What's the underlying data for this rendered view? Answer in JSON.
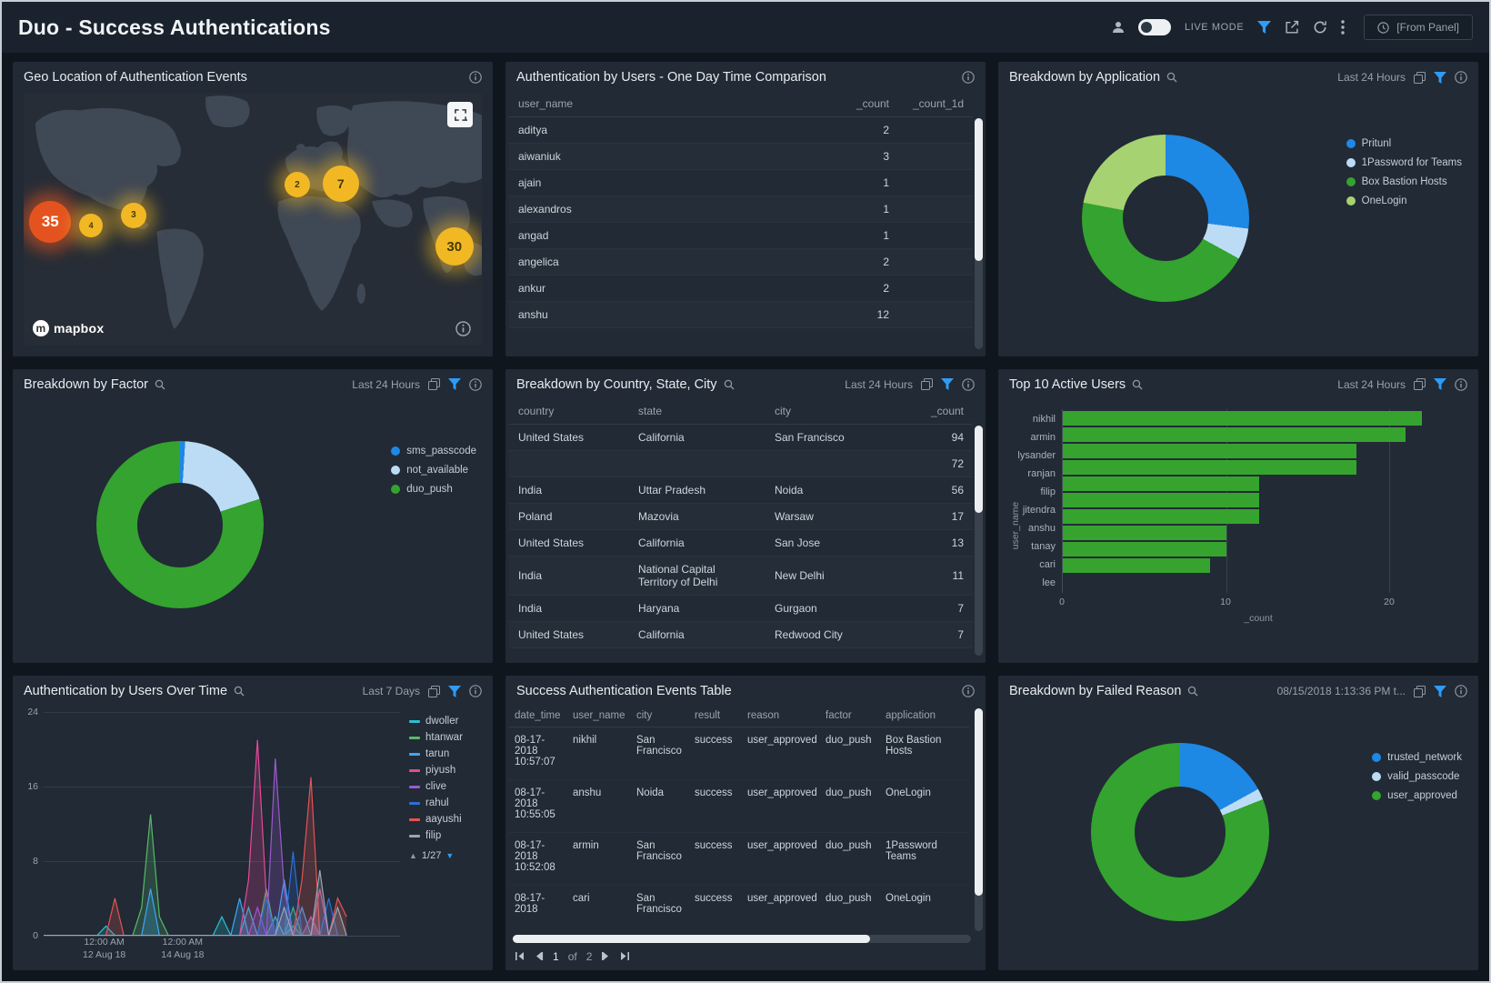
{
  "header": {
    "title": "Duo - Success Authentications",
    "live_mode_label": "LIVE MODE",
    "from_panel_label": "[From Panel]"
  },
  "panels": {
    "geo": {
      "title": "Geo Location of Authentication Events",
      "mapbox_label": "mapbox",
      "markers": [
        {
          "value": "35",
          "x": 5.8,
          "y": 51,
          "size": 46,
          "color": "#e4531f",
          "text_color": "#ffffff",
          "glow": "rgba(228,83,31,0.55)"
        },
        {
          "value": "4",
          "x": 14.7,
          "y": 52.5,
          "size": 26,
          "color": "#f2b824",
          "text_color": "#473a05",
          "glow": "rgba(242,184,36,0.45)"
        },
        {
          "value": "3",
          "x": 24,
          "y": 48.5,
          "size": 28,
          "color": "#f2b824",
          "text_color": "#473a05",
          "glow": "rgba(242,184,36,0.45)"
        },
        {
          "value": "2",
          "x": 59.7,
          "y": 36.5,
          "size": 28,
          "color": "#f2b824",
          "text_color": "#473a05",
          "glow": "rgba(242,184,36,0.45)"
        },
        {
          "value": "7",
          "x": 69.2,
          "y": 36,
          "size": 40,
          "color": "#f2b824",
          "text_color": "#473a05",
          "glow": "rgba(242,184,36,0.45)"
        },
        {
          "value": "30",
          "x": 94,
          "y": 61,
          "size": 42,
          "color": "#f2b824",
          "text_color": "#473a05",
          "glow": "rgba(242,184,36,0.45)"
        }
      ]
    },
    "users_comparison": {
      "title": "Authentication by Users - One Day Time Comparison",
      "columns": [
        "user_name",
        "_count",
        "_count_1d"
      ],
      "rows": [
        [
          "aditya",
          "2",
          ""
        ],
        [
          "aiwaniuk",
          "3",
          ""
        ],
        [
          "ajain",
          "1",
          ""
        ],
        [
          "alexandros",
          "1",
          ""
        ],
        [
          "angad",
          "1",
          ""
        ],
        [
          "angelica",
          "2",
          ""
        ],
        [
          "ankur",
          "2",
          ""
        ],
        [
          "anshu",
          "12",
          ""
        ]
      ]
    },
    "application": {
      "title": "Breakdown by Application",
      "time_range": "Last 24 Hours",
      "chart": {
        "type": "pie",
        "labels": [
          "Pritunl",
          "1Password for Teams",
          "Box Bastion Hosts",
          "OneLogin"
        ],
        "values": [
          27,
          6,
          45,
          22
        ],
        "colors": [
          "#1e88e5",
          "#bcdcf5",
          "#34a32f",
          "#a6d271"
        ]
      }
    },
    "factor": {
      "title": "Breakdown by Factor",
      "time_range": "Last 24 Hours",
      "chart": {
        "type": "pie",
        "labels": [
          "sms_passcode",
          "not_available",
          "duo_push"
        ],
        "values": [
          1,
          19,
          80
        ],
        "colors": [
          "#1e88e5",
          "#bcdcf5",
          "#34a32f"
        ]
      }
    },
    "country": {
      "title": "Breakdown by Country, State, City",
      "time_range": "Last 24 Hours",
      "columns": [
        "country",
        "state",
        "city",
        "_count"
      ],
      "rows": [
        [
          "United States",
          "California",
          "San Francisco",
          "94"
        ],
        [
          "",
          "",
          "",
          "72"
        ],
        [
          "India",
          "Uttar Pradesh",
          "Noida",
          "56"
        ],
        [
          "Poland",
          "Mazovia",
          "Warsaw",
          "17"
        ],
        [
          "United States",
          "California",
          "San Jose",
          "13"
        ],
        [
          "India",
          "National Capital Territory of Delhi",
          "New Delhi",
          "11"
        ],
        [
          "India",
          "Haryana",
          "Gurgaon",
          "7"
        ],
        [
          "United States",
          "California",
          "Redwood City",
          "7"
        ]
      ]
    },
    "top_users": {
      "title": "Top 10 Active Users",
      "time_range": "Last 24 Hours",
      "chart": {
        "type": "bar",
        "orientation": "horizontal",
        "categories": [
          "nikhil",
          "armin",
          "lysander",
          "ranjan",
          "filip",
          "jitendra",
          "anshu",
          "tanay",
          "cari",
          "lee"
        ],
        "values": [
          22,
          21,
          18,
          18,
          12,
          12,
          12,
          10,
          10,
          9
        ],
        "bar_color": "#36a32f",
        "xlabel": "_count",
        "ylabel": "user_name",
        "xticks": [
          0,
          10,
          20
        ],
        "xmax": 24
      }
    },
    "users_over_time": {
      "title": "Authentication by Users Over Time",
      "time_range": "Last 7 Days",
      "legend_page": "1/27",
      "chart": {
        "type": "line",
        "ymax": 24,
        "yticks": [
          24,
          16,
          8,
          0
        ],
        "xticks": [
          {
            "pos": 17,
            "lines": [
              "12:00 AM",
              "12 Aug 18"
            ]
          },
          {
            "pos": 39,
            "lines": [
              "12:00 AM",
              "14 Aug 18"
            ]
          }
        ],
        "n_points": 35,
        "x_span": 85,
        "series": [
          {
            "name": "dwoller",
            "color": "#2bc0cf",
            "spikes": [
              [
                7,
                1
              ],
              [
                20,
                2
              ],
              [
                23,
                3
              ],
              [
                26,
                2
              ],
              [
                28,
                1
              ]
            ]
          },
          {
            "name": "htanwar",
            "color": "#58b868",
            "spikes": [
              [
                11,
                3
              ],
              [
                12,
                13
              ],
              [
                13,
                2
              ],
              [
                25,
                5
              ],
              [
                28,
                3
              ],
              [
                30,
                2
              ]
            ]
          },
          {
            "name": "tarun",
            "color": "#3da9f5",
            "spikes": [
              [
                12,
                5
              ],
              [
                22,
                4
              ],
              [
                27,
                6
              ],
              [
                29,
                3
              ]
            ]
          },
          {
            "name": "piyush",
            "color": "#e8489b",
            "spikes": [
              [
                23,
                6
              ],
              [
                24,
                21
              ],
              [
                25,
                4
              ],
              [
                31,
                5
              ]
            ]
          },
          {
            "name": "clive",
            "color": "#9b59d0",
            "spikes": [
              [
                24,
                3
              ],
              [
                26,
                19
              ],
              [
                27,
                5
              ],
              [
                30,
                2
              ]
            ]
          },
          {
            "name": "rahul",
            "color": "#2f6fd8",
            "spikes": [
              [
                25,
                4
              ],
              [
                28,
                9
              ],
              [
                32,
                4
              ]
            ]
          },
          {
            "name": "aayushi",
            "color": "#e55353",
            "spikes": [
              [
                8,
                4
              ],
              [
                29,
                6
              ],
              [
                30,
                17
              ],
              [
                33,
                4
              ],
              [
                34,
                2
              ]
            ]
          },
          {
            "name": "filip",
            "color": "#9aa7b3",
            "spikes": [
              [
                27,
                3
              ],
              [
                31,
                7
              ],
              [
                33,
                3
              ]
            ]
          }
        ]
      }
    },
    "events": {
      "title": "Success Authentication Events Table",
      "columns": [
        "date_time",
        "user_name",
        "city",
        "result",
        "reason",
        "factor",
        "application"
      ],
      "rows": [
        [
          "08-17-2018 10:57:07",
          "nikhil",
          "San Francisco",
          "success",
          "user_approved",
          "duo_push",
          "Box Bastion Hosts"
        ],
        [
          "08-17-2018 10:55:05",
          "anshu",
          "Noida",
          "success",
          "user_approved",
          "duo_push",
          "OneLogin"
        ],
        [
          "08-17-2018 10:52:08",
          "armin",
          "San Francisco",
          "success",
          "user_approved",
          "duo_push",
          "1Password Teams"
        ],
        [
          "08-17-2018",
          "cari",
          "San Francisco",
          "success",
          "user_approved",
          "duo_push",
          "OneLogin"
        ]
      ],
      "pagination": {
        "page": "1",
        "of_label": "of",
        "total": "2"
      }
    },
    "failed_reason": {
      "title": "Breakdown by Failed Reason",
      "time_range": "08/15/2018 1:13:36 PM t...",
      "chart": {
        "type": "pie",
        "labels": [
          "trusted_network",
          "valid_passcode",
          "user_approved"
        ],
        "values": [
          17,
          2,
          81
        ],
        "colors": [
          "#1e88e5",
          "#bcdcf5",
          "#34a32f"
        ]
      }
    }
  }
}
